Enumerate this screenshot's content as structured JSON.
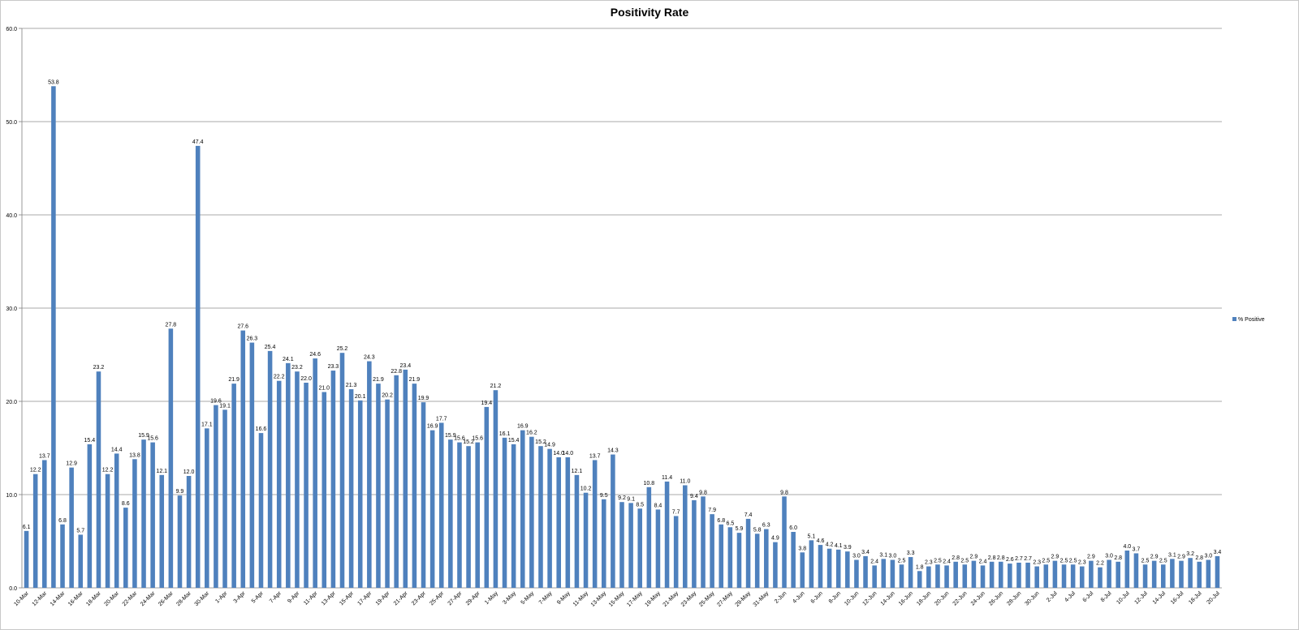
{
  "chart_data": {
    "type": "bar",
    "title": "Positivity Rate",
    "xlabel": "",
    "ylabel": "",
    "ylim": [
      0,
      60
    ],
    "yticks": [
      "0.0",
      "10.0",
      "20.0",
      "30.0",
      "40.0",
      "50.0",
      "60.0"
    ],
    "grid": true,
    "legend_position": "right",
    "bar_color": "#4f81bd",
    "grid_color": "#8c8c8c",
    "categories": [
      "10-Mar",
      "11-Mar",
      "12-Mar",
      "13-Mar",
      "14-Mar",
      "15-Mar",
      "16-Mar",
      "17-Mar",
      "18-Mar",
      "19-Mar",
      "20-Mar",
      "21-Mar",
      "22-Mar",
      "23-Mar",
      "24-Mar",
      "25-Mar",
      "26-Mar",
      "27-Mar",
      "28-Mar",
      "29-Mar",
      "30-Mar",
      "31-Mar",
      "1-Apr",
      "2-Apr",
      "3-Apr",
      "4-Apr",
      "5-Apr",
      "6-Apr",
      "7-Apr",
      "8-Apr",
      "9-Apr",
      "10-Apr",
      "11-Apr",
      "12-Apr",
      "13-Apr",
      "14-Apr",
      "15-Apr",
      "16-Apr",
      "17-Apr",
      "18-Apr",
      "19-Apr",
      "20-Apr",
      "21-Apr",
      "22-Apr",
      "23-Apr",
      "24-Apr",
      "25-Apr",
      "26-Apr",
      "27-Apr",
      "28-Apr",
      "29-Apr",
      "30-Apr",
      "1-May",
      "2-May",
      "3-May",
      "4-May",
      "5-May",
      "6-May",
      "7-May",
      "8-May",
      "9-May",
      "10-May",
      "11-May",
      "12-May",
      "13-May",
      "14-May",
      "15-May",
      "16-May",
      "17-May",
      "18-May",
      "19-May",
      "20-May",
      "21-May",
      "22-May",
      "23-May",
      "24-May",
      "25-May",
      "26-May",
      "27-May",
      "28-May",
      "29-May",
      "30-May",
      "31-May",
      "1-Jun",
      "2-Jun",
      "3-Jun",
      "4-Jun",
      "5-Jun",
      "6-Jun",
      "7-Jun",
      "8-Jun",
      "9-Jun",
      "10-Jun",
      "11-Jun",
      "12-Jun",
      "13-Jun",
      "14-Jun",
      "15-Jun",
      "16-Jun",
      "17-Jun",
      "18-Jun",
      "19-Jun",
      "20-Jun",
      "21-Jun",
      "22-Jun",
      "23-Jun",
      "24-Jun",
      "25-Jun",
      "26-Jun",
      "27-Jun",
      "28-Jun",
      "29-Jun",
      "30-Jun",
      "1-Jul",
      "2-Jul",
      "3-Jul",
      "4-Jul",
      "5-Jul",
      "6-Jul",
      "7-Jul",
      "8-Jul",
      "9-Jul",
      "10-Jul",
      "11-Jul",
      "12-Jul",
      "13-Jul",
      "14-Jul",
      "15-Jul",
      "16-Jul",
      "17-Jul",
      "18-Jul",
      "19-Jul",
      "20-Jul"
    ],
    "shown_x_labels": [
      "10-Mar",
      "12-Mar",
      "14-Mar",
      "16-Mar",
      "18-Mar",
      "20-Mar",
      "22-Mar",
      "24-Mar",
      "26-Mar",
      "28-Mar",
      "30-Mar",
      "1-Apr",
      "3-Apr",
      "5-Apr",
      "7-Apr",
      "9-Apr",
      "11-Apr",
      "13-Apr",
      "15-Apr",
      "17-Apr",
      "19-Apr",
      "21-Apr",
      "23-Apr",
      "25-Apr",
      "27-Apr",
      "29-Apr",
      "1-May",
      "3-May",
      "5-May",
      "7-May",
      "9-May",
      "11-May",
      "13-May",
      "15-May",
      "17-May",
      "19-May",
      "21-May",
      "23-May",
      "25-May",
      "27-May",
      "29-May",
      "31-May",
      "2-Jun",
      "4-Jun",
      "6-Jun",
      "8-Jun",
      "10-Jun",
      "12-Jun",
      "14-Jun",
      "16-Jun",
      "18-Jun",
      "20-Jun",
      "22-Jun",
      "24-Jun",
      "26-Jun",
      "28-Jun",
      "30-Jun",
      "2-Jul",
      "4-Jul",
      "6-Jul",
      "8-Jul",
      "10-Jul",
      "12-Jul",
      "14-Jul",
      "16-Jul",
      "18-Jul",
      "20-Jul"
    ],
    "series": [
      {
        "name": "% Positive",
        "values": [
          6.1,
          12.2,
          13.7,
          53.8,
          6.8,
          12.9,
          5.7,
          15.4,
          23.2,
          12.2,
          14.4,
          8.6,
          13.8,
          15.9,
          15.6,
          12.1,
          27.8,
          9.9,
          12.0,
          47.4,
          17.1,
          19.6,
          19.1,
          21.9,
          27.6,
          26.3,
          16.6,
          25.4,
          22.2,
          24.1,
          23.2,
          22.0,
          24.6,
          21.0,
          23.3,
          25.2,
          21.3,
          20.1,
          24.3,
          21.9,
          20.2,
          22.8,
          23.4,
          21.9,
          19.9,
          16.9,
          17.7,
          15.9,
          15.6,
          15.2,
          15.6,
          19.4,
          21.2,
          16.1,
          15.4,
          16.9,
          16.2,
          15.2,
          14.9,
          14.0,
          14.0,
          12.1,
          10.2,
          13.7,
          9.5,
          14.3,
          9.2,
          9.1,
          8.5,
          10.8,
          8.4,
          11.4,
          7.7,
          11.0,
          9.4,
          9.8,
          7.9,
          6.8,
          6.5,
          5.9,
          7.4,
          5.8,
          6.3,
          4.9,
          9.8,
          6.0,
          3.8,
          5.1,
          4.6,
          4.2,
          4.1,
          3.9,
          3.0,
          3.4,
          2.4,
          3.1,
          3.0,
          2.5,
          3.3,
          1.8,
          2.3,
          2.5,
          2.4,
          2.8,
          2.5,
          2.9,
          2.4,
          2.8,
          2.8,
          2.6,
          2.7,
          2.7,
          2.3,
          2.5,
          2.9,
          2.5,
          2.5,
          2.3,
          2.9,
          2.2,
          3.0,
          2.8,
          4.0,
          3.7,
          2.5,
          2.9,
          2.5,
          3.1,
          2.9,
          3.2,
          2.8,
          3.0,
          3.4
        ],
        "labels": [
          "6.1",
          "12.2",
          "13.7",
          "53.8",
          "6.8",
          "12.9",
          "5.7",
          "15.4",
          "23.2",
          "12.2",
          "14.4",
          "8.6",
          "13.8",
          "15.9",
          "15.6",
          "12.1",
          "27.8",
          "9.9",
          "12.0",
          "47.4",
          "17.1",
          "19.6",
          "19.1",
          "21.9",
          "27.6",
          "26.3",
          "16.6",
          "25.4",
          "22.2",
          "24.1",
          "23.2",
          "22.0",
          "24.6",
          "21.0",
          "23.3",
          "25.2",
          "21.3",
          "20.1",
          "24.3",
          "21.9",
          "20.2",
          "22.8",
          "23.4",
          "21.9",
          "19.9",
          "16.9",
          "17.7",
          "15.9",
          "15.6",
          "15.2",
          "15.6",
          "19.4",
          "21.2",
          "16.1",
          "15.4",
          "16.9",
          "16.2",
          "15.2",
          "14.9",
          "14.0",
          "14.0",
          "12.1",
          "10.2",
          "13.7",
          "9.5",
          "14.3",
          "9.2",
          "9.1",
          "8.5",
          "10.8",
          "8.4",
          "11.4",
          "7.7",
          "11.0",
          "9.4",
          "9.8",
          "7.9",
          "6.8",
          "6.5",
          "5.9",
          "7.4",
          "5.8",
          "6.3",
          "4.9",
          "9.8",
          "6.0",
          "3.8",
          "5.1",
          "4.6",
          "4.2",
          "4.1",
          "3.9",
          "3.0",
          "3.4",
          "2.4",
          "3.1",
          "3.0",
          "2.5",
          "3.3",
          "1.8",
          "2.3",
          "2.5",
          "2.4",
          "2.8",
          "2.5",
          "2.9",
          "2.4",
          "2.8",
          "2.8",
          "2.6",
          "2.7",
          "2.7",
          "2.3",
          "2.5",
          "2.9",
          "2.5",
          "2.5",
          "2.3",
          "2.9",
          "2.2",
          "3.0",
          "2.8",
          "4.0",
          "3.7",
          "2.5",
          "2.9",
          "2.5",
          "3.1",
          "2.9",
          "3.2",
          "2.8",
          "3.0",
          "3.4"
        ]
      }
    ]
  }
}
